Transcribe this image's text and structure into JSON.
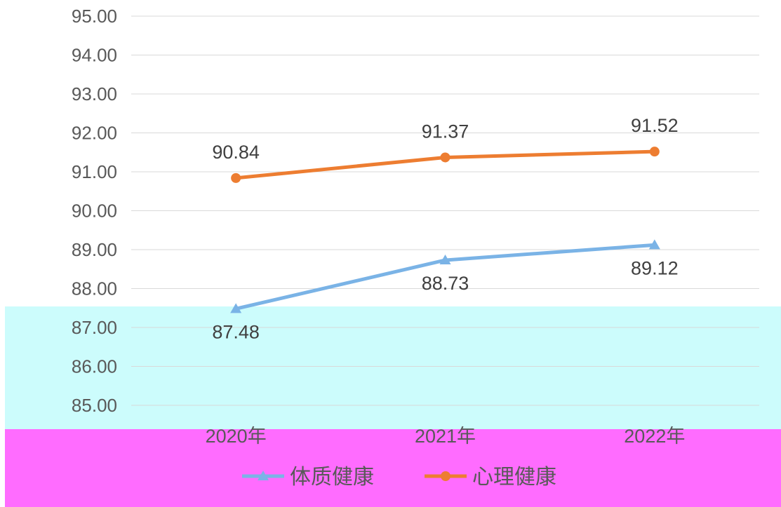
{
  "chart_data": {
    "type": "line",
    "categories": [
      "2020年",
      "2021年",
      "2022年"
    ],
    "series": [
      {
        "name": "体质健康",
        "values": [
          87.48,
          88.73,
          89.12
        ],
        "color": "#7ab3e6",
        "marker": "triangle"
      },
      {
        "name": "心理健康",
        "values": [
          90.84,
          91.37,
          91.52
        ],
        "color": "#ed7d31",
        "marker": "circle"
      }
    ],
    "y_ticks": [
      "95.00",
      "94.00",
      "93.00",
      "92.00",
      "91.00",
      "90.00",
      "89.00",
      "88.00",
      "87.00",
      "86.00",
      "85.00"
    ],
    "ylim": [
      85,
      95
    ],
    "grid": true,
    "legend_position": "bottom",
    "title": "",
    "xlabel": "",
    "ylabel": ""
  },
  "highlight_colors": {
    "cyan_band": "#ccfcfc",
    "magenta_band": "#ff6cff"
  }
}
